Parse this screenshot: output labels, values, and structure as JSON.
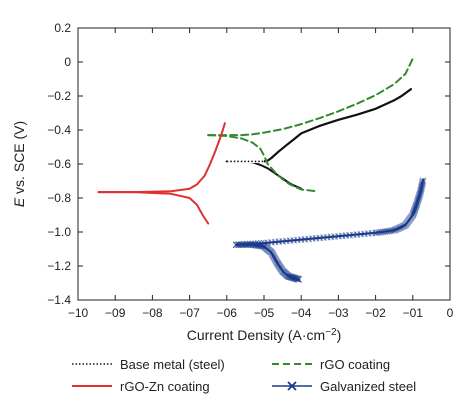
{
  "chart_data": {
    "type": "line",
    "title": "",
    "xlabel": "Current Density (A·cm",
    "xlabel_sup": "−2",
    "xlabel_close": ")",
    "ylabel_italic": "E",
    "ylabel_rest": " vs. SCE (V)",
    "xlim": [
      -10,
      0
    ],
    "ylim": [
      -1.4,
      0.2
    ],
    "xticks": [
      -10,
      -9,
      -8,
      -7,
      -6,
      -5,
      -4,
      -3,
      -2,
      -1,
      0
    ],
    "xtick_labels": [
      "−10",
      "−09",
      "−08",
      "−07",
      "−06",
      "−05",
      "−04",
      "−03",
      "−02",
      "−01",
      "0"
    ],
    "yticks": [
      0.2,
      0,
      -0.2,
      -0.4,
      -0.6,
      -0.8,
      -1.0,
      -1.2,
      -1.4
    ],
    "ytick_labels": [
      "0.2",
      "0",
      "−0.2",
      "−0.4",
      "−0.6",
      "−0.8",
      "−1.0",
      "−1.2",
      "−1.4"
    ],
    "grid": false,
    "legend_position": "bottom",
    "series": [
      {
        "name": "Base metal (steel)",
        "color": "#111111",
        "style": "dotted-solid",
        "branches": [
          {
            "x": [
              -6.0,
              -5.8,
              -5.6,
              -5.4,
              -5.2,
              -5.0,
              -4.9,
              -4.8,
              -4.6,
              -4.4,
              -4.2,
              -4.0,
              -3.5,
              -3.0,
              -2.5,
              -2.0,
              -1.5,
              -1.3,
              -1.05
            ],
            "y": [
              -0.585,
              -0.585,
              -0.585,
              -0.585,
              -0.585,
              -0.585,
              -0.58,
              -0.565,
              -0.525,
              -0.49,
              -0.455,
              -0.42,
              -0.375,
              -0.34,
              -0.31,
              -0.275,
              -0.225,
              -0.2,
              -0.16
            ]
          },
          {
            "x": [
              -6.0,
              -5.6,
              -5.3,
              -5.1,
              -4.9,
              -4.7,
              -4.5,
              -4.3,
              -4.1,
              -4.0
            ],
            "y": [
              -0.585,
              -0.585,
              -0.59,
              -0.605,
              -0.625,
              -0.655,
              -0.685,
              -0.715,
              -0.735,
              -0.745
            ]
          }
        ]
      },
      {
        "name": "rGO coating",
        "color": "#2e8b2e",
        "style": "dashed",
        "branches": [
          {
            "x": [
              -6.5,
              -6.0,
              -5.6,
              -5.3,
              -5.0,
              -4.5,
              -4.0,
              -3.5,
              -3.0,
              -2.5,
              -2.0,
              -1.5,
              -1.2,
              -1.0
            ],
            "y": [
              -0.43,
              -0.43,
              -0.43,
              -0.425,
              -0.415,
              -0.395,
              -0.365,
              -0.33,
              -0.29,
              -0.245,
              -0.195,
              -0.13,
              -0.07,
              0.02
            ]
          },
          {
            "x": [
              -6.5,
              -6.0,
              -5.6,
              -5.3,
              -5.1,
              -5.0,
              -4.9,
              -4.7,
              -4.5,
              -4.3,
              -4.0,
              -3.6
            ],
            "y": [
              -0.43,
              -0.435,
              -0.45,
              -0.475,
              -0.51,
              -0.55,
              -0.6,
              -0.65,
              -0.69,
              -0.72,
              -0.75,
              -0.76
            ]
          }
        ]
      },
      {
        "name": "rGO-Zn coating",
        "color": "#e03030",
        "style": "solid",
        "branches": [
          {
            "x": [
              -9.45,
              -8.5,
              -7.5,
              -7.0,
              -6.8,
              -6.6,
              -6.45,
              -6.3,
              -6.15,
              -6.05
            ],
            "y": [
              -0.765,
              -0.765,
              -0.76,
              -0.745,
              -0.72,
              -0.67,
              -0.6,
              -0.52,
              -0.43,
              -0.36
            ]
          },
          {
            "x": [
              -9.45,
              -8.5,
              -7.5,
              -7.0,
              -6.8,
              -6.65,
              -6.5
            ],
            "y": [
              -0.765,
              -0.765,
              -0.775,
              -0.8,
              -0.84,
              -0.9,
              -0.95
            ]
          }
        ]
      },
      {
        "name": "Galvanized steel",
        "color": "#1a3a8c",
        "style": "solid-markers",
        "branches": [
          {
            "x": [
              -5.75,
              -5.0,
              -4.0,
              -3.0,
              -2.0,
              -1.5,
              -1.2,
              -1.0,
              -0.9,
              -0.8,
              -0.72
            ],
            "y": [
              -1.075,
              -1.065,
              -1.045,
              -1.025,
              -1.005,
              -0.99,
              -0.96,
              -0.9,
              -0.84,
              -0.77,
              -0.69
            ]
          },
          {
            "x": [
              -5.75,
              -5.3,
              -5.0,
              -4.8,
              -4.65,
              -4.5,
              -4.35,
              -4.2,
              -4.05
            ],
            "y": [
              -1.075,
              -1.075,
              -1.085,
              -1.12,
              -1.18,
              -1.23,
              -1.26,
              -1.27,
              -1.28
            ]
          }
        ]
      }
    ]
  }
}
